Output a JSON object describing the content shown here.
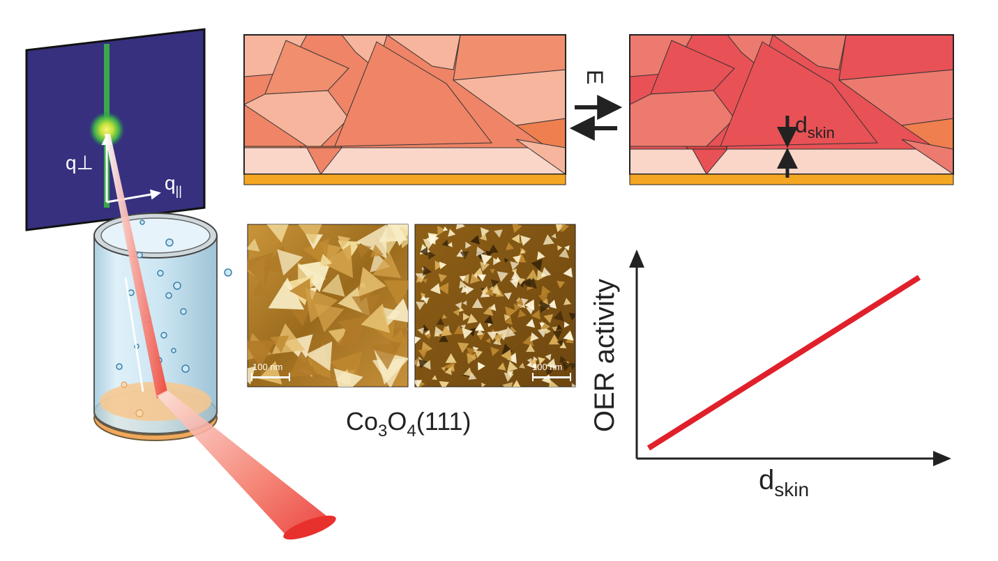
{
  "detector": {
    "q_perp_label": "q⊥",
    "q_par_label": "q",
    "q_par_sub": "||"
  },
  "switch": {
    "label": "E"
  },
  "skin": {
    "label": "d",
    "sub": "skin"
  },
  "afm": {
    "left_scalebar": "100 nm",
    "right_scalebar": "100 nm",
    "caption_parts": [
      "Co",
      "3",
      "O",
      "4",
      "(111)"
    ]
  },
  "plot": {
    "ylabel": "OER activity",
    "xlabel": "d",
    "xlabel_sub": "skin"
  },
  "chart_data": {
    "type": "line",
    "title": "",
    "xlabel": "dskin",
    "ylabel": "OER activity",
    "series": [
      {
        "values": [
          [
            0.0,
            0.0
          ],
          [
            1.0,
            1.0
          ]
        ]
      }
    ],
    "trend": "linear increasing",
    "grid": false,
    "ticks": false
  },
  "colors": {
    "detector": "#36307f",
    "streak": "#3aa84a",
    "beam": "#e8302c",
    "film_base": "#ef8466",
    "film_light": "#f6b59c",
    "film_pale": "#f9d6c8",
    "skin_red": "#e85155",
    "substrate": "#f5a623",
    "afm_bright": "#f3dd9d",
    "afm_dark": "#3a2608",
    "line": "#e0202a",
    "cell_glass": "#c6e3f1",
    "cell_bottom": "#f8c78d"
  }
}
